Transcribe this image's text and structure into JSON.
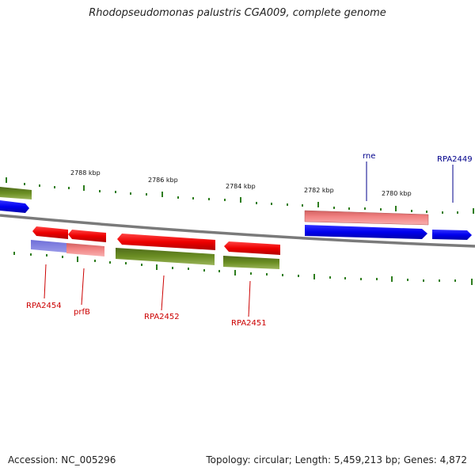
{
  "title": "Rhodopseudomonas palustris CGA009, complete genome",
  "footer": {
    "accession": "Accession: NC_005296",
    "summary": "Topology: circular; Length: 5,459,213 bp; Genes: 4,872"
  },
  "colors": {
    "backbone": "#808080",
    "tick": "#2e7d1e",
    "forward_gene": "#0000ee",
    "forward_cds": "#f08080",
    "reverse_gene": "#ee0000",
    "reverse_cds": "#6b8e23",
    "label_forward": "#00008b",
    "label_reverse": "#cc0000"
  },
  "scale_labels": [
    "2788 kbp",
    "2786 kbp",
    "2784 kbp",
    "2782 kbp",
    "2780 kbp"
  ],
  "forward_labels": [
    "rne",
    "RPA2449"
  ],
  "reverse_labels": [
    "RPA2454",
    "prfB",
    "RPA2452",
    "RPA2451"
  ]
}
